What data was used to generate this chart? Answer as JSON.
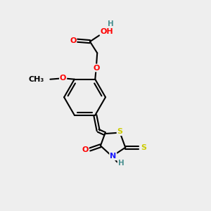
{
  "bg_color": "#eeeeee",
  "atom_colors": {
    "C": "#000000",
    "O": "#ff0000",
    "S": "#cccc00",
    "N": "#1a1aff",
    "H": "#4a9090"
  },
  "bond_color": "#000000",
  "fig_size": [
    3.0,
    3.0
  ],
  "dpi": 100,
  "lw": 1.5,
  "fs": 8.0
}
